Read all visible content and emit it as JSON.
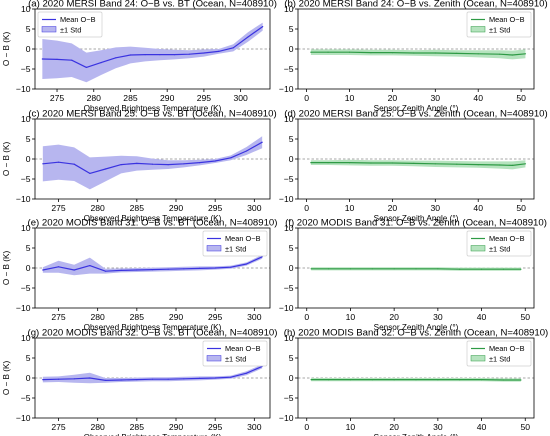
{
  "colors": {
    "blue_line": "#3a33e0",
    "blue_fill": "#b7b6ef",
    "green_line": "#2e9a45",
    "green_fill": "#b5e3be",
    "zero_line": "#8a8a8a"
  },
  "chart_data": [
    {
      "type": "line",
      "title": "(a) 2020 MERSI Band 24: O−B vs. BT (Ocean, N=408910)",
      "xlabel": "Observed Brightness Temperature (K)",
      "ylabel": "O − B (K)",
      "xlim": [
        272,
        304
      ],
      "ylim": [
        -10,
        10
      ],
      "xticks": [
        275,
        280,
        285,
        290,
        295,
        300
      ],
      "yticks": [
        -10,
        -5,
        0,
        5,
        10
      ],
      "xtick_labels": [
        "275",
        "280",
        "285",
        "290",
        "295",
        "300"
      ],
      "ytick_labels": [
        "−10",
        "−5",
        "0",
        "5",
        "10"
      ],
      "legend_position": "top-left",
      "legend": [
        "Mean O−B",
        "±1 Std"
      ],
      "x": [
        273,
        275,
        277,
        279,
        281,
        283,
        285,
        287,
        289,
        291,
        293,
        295,
        297,
        299,
        301,
        303
      ],
      "series": [
        {
          "name": "Mean O−B",
          "band": "±1 Std",
          "color": "blue",
          "values": [
            -2.5,
            -2.6,
            -2.8,
            -4.6,
            -3.4,
            -2.2,
            -1.5,
            -1.4,
            -1.4,
            -1.4,
            -1.3,
            -1.0,
            -0.6,
            0.3,
            3.0,
            5.6
          ],
          "lower": [
            -7.5,
            -7.3,
            -7.0,
            -8.3,
            -6.5,
            -4.8,
            -3.6,
            -3.1,
            -2.8,
            -2.6,
            -2.3,
            -1.9,
            -1.2,
            -0.6,
            1.8,
            4.6
          ],
          "upper": [
            2.5,
            2.1,
            1.4,
            -0.9,
            -0.3,
            0.4,
            0.6,
            0.3,
            0.0,
            -0.2,
            -0.3,
            -0.1,
            0.0,
            1.2,
            4.2,
            6.6
          ]
        }
      ]
    },
    {
      "type": "line",
      "title": "(b) 2020 MERSI Band 24: O−B vs. Zenith (Ocean, N=408910)",
      "xlabel": "Sensor Zenith Angle (°)",
      "ylabel": "",
      "xlim": [
        -2,
        53
      ],
      "ylim": [
        -10,
        10
      ],
      "xticks": [
        0,
        10,
        20,
        30,
        40,
        50
      ],
      "yticks": [
        -10,
        -5,
        0,
        5,
        10
      ],
      "xtick_labels": [
        "0",
        "10",
        "20",
        "30",
        "40",
        "50"
      ],
      "ytick_labels": [
        "−10",
        "−5",
        "0",
        "5",
        "10"
      ],
      "legend_position": "top-right",
      "legend": [
        "Mean O−B",
        "±1 Std"
      ],
      "x": [
        1,
        5,
        10,
        15,
        20,
        25,
        30,
        35,
        40,
        45,
        48,
        51
      ],
      "series": [
        {
          "name": "Mean O−B",
          "band": "±1 Std",
          "color": "green",
          "values": [
            -0.8,
            -0.8,
            -0.8,
            -0.9,
            -0.9,
            -1.0,
            -1.0,
            -1.1,
            -1.2,
            -1.3,
            -1.5,
            -1.2
          ],
          "lower": [
            -1.5,
            -1.5,
            -1.5,
            -1.6,
            -1.6,
            -1.7,
            -1.8,
            -1.9,
            -2.1,
            -2.3,
            -2.6,
            -2.3
          ],
          "upper": [
            -0.1,
            -0.1,
            -0.1,
            -0.2,
            -0.2,
            -0.3,
            -0.2,
            -0.3,
            -0.3,
            -0.3,
            -0.4,
            -0.1
          ]
        }
      ]
    },
    {
      "type": "line",
      "title": "(c) 2020 MERSI Band 25: O−B vs. BT (Ocean, N=408910)",
      "xlabel": "Observed Brightness Temperature (K)",
      "ylabel": "O − B (K)",
      "xlim": [
        272,
        302
      ],
      "ylim": [
        -10,
        10
      ],
      "xticks": [
        275,
        280,
        285,
        290,
        295,
        300
      ],
      "yticks": [
        -10,
        -5,
        0,
        5,
        10
      ],
      "xtick_labels": [
        "275",
        "280",
        "285",
        "290",
        "295",
        "300"
      ],
      "ytick_labels": [
        "−10",
        "−5",
        "0",
        "5",
        "10"
      ],
      "legend_position": "",
      "legend": [],
      "x": [
        273,
        275,
        277,
        279,
        281,
        283,
        285,
        287,
        289,
        291,
        293,
        295,
        297,
        299,
        301
      ],
      "series": [
        {
          "name": "",
          "band": "",
          "color": "blue",
          "values": [
            -1.2,
            -0.8,
            -1.3,
            -3.6,
            -2.5,
            -1.4,
            -1.1,
            -1.3,
            -1.4,
            -1.2,
            -0.9,
            -0.5,
            0.3,
            2.0,
            4.2
          ],
          "lower": [
            -5.6,
            -5.2,
            -5.5,
            -7.6,
            -5.6,
            -3.6,
            -2.9,
            -2.7,
            -2.5,
            -2.1,
            -1.6,
            -1.0,
            -0.3,
            1.0,
            2.7
          ],
          "upper": [
            3.2,
            3.6,
            2.9,
            0.4,
            0.6,
            0.8,
            0.7,
            0.1,
            -0.3,
            -0.3,
            -0.2,
            0.0,
            0.9,
            3.0,
            5.7
          ]
        }
      ]
    },
    {
      "type": "line",
      "title": "(d) 2020 MERSI Band 25: O−B vs. Zenith (Ocean, N=408910)",
      "xlabel": "Sensor Zenith Angle (°)",
      "ylabel": "",
      "xlim": [
        -2,
        53
      ],
      "ylim": [
        -10,
        10
      ],
      "xticks": [
        0,
        10,
        20,
        30,
        40,
        50
      ],
      "yticks": [
        -10,
        -5,
        0,
        5,
        10
      ],
      "xtick_labels": [
        "0",
        "10",
        "20",
        "30",
        "40",
        "50"
      ],
      "ytick_labels": [
        "−10",
        "−5",
        "0",
        "5",
        "10"
      ],
      "legend_position": "",
      "legend": [],
      "x": [
        1,
        5,
        10,
        15,
        20,
        25,
        30,
        35,
        40,
        45,
        48,
        51
      ],
      "series": [
        {
          "name": "",
          "band": "",
          "color": "green",
          "values": [
            -0.9,
            -0.9,
            -0.9,
            -1.0,
            -1.0,
            -1.1,
            -1.2,
            -1.3,
            -1.4,
            -1.5,
            -1.6,
            -1.2
          ],
          "lower": [
            -1.5,
            -1.5,
            -1.6,
            -1.7,
            -1.7,
            -1.8,
            -2.0,
            -2.1,
            -2.2,
            -2.4,
            -2.6,
            -2.1
          ],
          "upper": [
            -0.3,
            -0.3,
            -0.2,
            -0.3,
            -0.3,
            -0.4,
            -0.4,
            -0.5,
            -0.6,
            -0.6,
            -0.6,
            -0.3
          ]
        }
      ]
    },
    {
      "type": "line",
      "title": "(e) 2020 MODIS Band 31: O−B vs. BT (Ocean, N=408910)",
      "xlabel": "Observed Brightness Temperature (K)",
      "ylabel": "O − B (K)",
      "xlim": [
        272,
        302
      ],
      "ylim": [
        -10,
        10
      ],
      "xticks": [
        275,
        280,
        285,
        290,
        295,
        300
      ],
      "yticks": [
        -10,
        -5,
        0,
        5,
        10
      ],
      "xtick_labels": [
        "275",
        "280",
        "285",
        "290",
        "295",
        "300"
      ],
      "ytick_labels": [
        "−10",
        "−5",
        "0",
        "5",
        "10"
      ],
      "legend_position": "top-right",
      "legend": [
        "Mean O−B",
        "±1 Std"
      ],
      "x": [
        273,
        275,
        277,
        279,
        281,
        283,
        285,
        287,
        289,
        291,
        293,
        295,
        297,
        299,
        301
      ],
      "series": [
        {
          "name": "Mean O−B",
          "band": "±1 Std",
          "color": "blue",
          "values": [
            -0.5,
            0.3,
            -0.5,
            0.6,
            -0.8,
            -0.6,
            -0.5,
            -0.4,
            -0.3,
            -0.2,
            -0.1,
            0.0,
            0.2,
            1.0,
            2.8
          ],
          "lower": [
            -1.2,
            -1.2,
            -1.8,
            -1.4,
            -1.4,
            -1.1,
            -1.0,
            -0.9,
            -0.8,
            -0.7,
            -0.6,
            -0.4,
            -0.2,
            0.6,
            2.3
          ],
          "upper": [
            0.2,
            1.8,
            0.8,
            2.6,
            -0.2,
            -0.1,
            0.0,
            0.1,
            0.2,
            0.3,
            0.4,
            0.4,
            0.6,
            1.4,
            3.3
          ]
        }
      ]
    },
    {
      "type": "line",
      "title": "(f) 2020 MODIS Band 31: O−B vs. Zenith (Ocean, N=408910)",
      "xlabel": "Sensor Zenith Angle (°)",
      "ylabel": "",
      "xlim": [
        -2,
        52
      ],
      "ylim": [
        -10,
        10
      ],
      "xticks": [
        0,
        10,
        20,
        30,
        40,
        50
      ],
      "yticks": [
        -10,
        -5,
        0,
        5,
        10
      ],
      "xtick_labels": [
        "0",
        "10",
        "20",
        "30",
        "40",
        "50"
      ],
      "ytick_labels": [
        "−10",
        "−5",
        "0",
        "5",
        "10"
      ],
      "legend_position": "top-right",
      "legend": [
        "Mean O−B",
        "±1 Std"
      ],
      "x": [
        1,
        5,
        10,
        15,
        20,
        25,
        30,
        35,
        40,
        45,
        49
      ],
      "series": [
        {
          "name": "Mean O−B",
          "band": "±1 Std",
          "color": "green",
          "values": [
            -0.2,
            -0.2,
            -0.2,
            -0.2,
            -0.2,
            -0.2,
            -0.2,
            -0.3,
            -0.3,
            -0.3,
            -0.3
          ],
          "lower": [
            -0.6,
            -0.6,
            -0.6,
            -0.6,
            -0.6,
            -0.6,
            -0.6,
            -0.7,
            -0.7,
            -0.7,
            -0.7
          ],
          "upper": [
            0.2,
            0.2,
            0.2,
            0.2,
            0.2,
            0.2,
            0.2,
            0.1,
            0.1,
            0.1,
            0.1
          ]
        }
      ]
    },
    {
      "type": "line",
      "title": "(g) 2020 MODIS Band 32: O−B vs. BT (Ocean, N=408910)",
      "xlabel": "Observed Brightness Temperature (K)",
      "ylabel": "O − B (K)",
      "xlim": [
        272,
        302
      ],
      "ylim": [
        -10,
        10
      ],
      "xticks": [
        275,
        280,
        285,
        290,
        295,
        300
      ],
      "yticks": [
        -10,
        -5,
        0,
        5,
        10
      ],
      "xtick_labels": [
        "275",
        "280",
        "285",
        "290",
        "295",
        "300"
      ],
      "ytick_labels": [
        "−10",
        "−5",
        "0",
        "5",
        "10"
      ],
      "legend_position": "top-right",
      "legend": [
        "Mean O−B",
        "±1 Std"
      ],
      "x": [
        273,
        275,
        277,
        279,
        281,
        283,
        285,
        287,
        289,
        291,
        293,
        295,
        297,
        299,
        301
      ],
      "series": [
        {
          "name": "Mean O−B",
          "band": "±1 Std",
          "color": "blue",
          "values": [
            -0.4,
            -0.3,
            -0.2,
            0.0,
            -0.6,
            -0.5,
            -0.4,
            -0.3,
            -0.3,
            -0.2,
            -0.1,
            0.0,
            0.2,
            1.2,
            2.9
          ],
          "lower": [
            -1.1,
            -1.0,
            -1.2,
            -1.3,
            -1.2,
            -1.0,
            -0.9,
            -0.8,
            -0.8,
            -0.7,
            -0.6,
            -0.4,
            -0.2,
            0.7,
            2.4
          ],
          "upper": [
            0.3,
            0.4,
            0.8,
            1.3,
            0.0,
            0.0,
            0.1,
            0.2,
            0.2,
            0.3,
            0.4,
            0.4,
            0.6,
            1.7,
            3.4
          ]
        }
      ]
    },
    {
      "type": "line",
      "title": "(h) 2020 MODIS Band 32: O−B vs. Zenith (Ocean, N=408910)",
      "xlabel": "Sensor Zenith Angle (°)",
      "ylabel": "",
      "xlim": [
        -2,
        52
      ],
      "ylim": [
        -10,
        10
      ],
      "xticks": [
        0,
        10,
        20,
        30,
        40,
        50
      ],
      "yticks": [
        -10,
        -5,
        0,
        5,
        10
      ],
      "xtick_labels": [
        "0",
        "10",
        "20",
        "30",
        "40",
        "50"
      ],
      "ytick_labels": [
        "−10",
        "−5",
        "0",
        "5",
        "10"
      ],
      "legend_position": "top-right",
      "legend": [
        "Mean O−B",
        "±1 Std"
      ],
      "x": [
        1,
        5,
        10,
        15,
        20,
        25,
        30,
        35,
        40,
        45,
        49
      ],
      "series": [
        {
          "name": "Mean O−B",
          "band": "±1 Std",
          "color": "green",
          "values": [
            -0.4,
            -0.4,
            -0.4,
            -0.4,
            -0.4,
            -0.4,
            -0.4,
            -0.4,
            -0.4,
            -0.5,
            -0.5
          ],
          "lower": [
            -0.8,
            -0.8,
            -0.8,
            -0.8,
            -0.8,
            -0.8,
            -0.8,
            -0.8,
            -0.8,
            -0.9,
            -0.9
          ],
          "upper": [
            0.0,
            0.0,
            0.0,
            0.0,
            0.0,
            0.0,
            0.0,
            0.0,
            0.0,
            -0.1,
            -0.1
          ]
        }
      ]
    }
  ]
}
